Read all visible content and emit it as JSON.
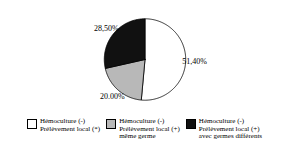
{
  "chart_data": {
    "type": "pie",
    "categories": [
      "Hémoculture (-)\nPrélèvement local (*)",
      "Hémoculture (-)\nPrélèvement local (+)\nmême germe",
      "Hémoculture (-)\nPrélèvement local (+)\navec germes différents"
    ],
    "values": [
      51.4,
      20.0,
      28.5
    ],
    "value_labels": [
      "51,40%",
      "20.00%",
      "28,50%"
    ],
    "colors": [
      "#ffffff",
      "#b8b8b8",
      "#111111"
    ],
    "data_labels": true,
    "legend": "bottom"
  }
}
